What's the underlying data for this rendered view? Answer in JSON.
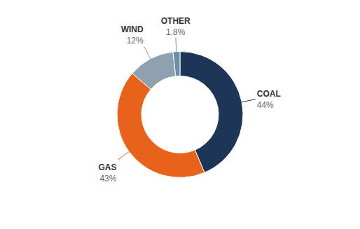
{
  "chart_data": {
    "type": "pie",
    "categories": [
      "COAL",
      "GAS",
      "WIND",
      "OTHER"
    ],
    "values": [
      44,
      43,
      12,
      1.8
    ],
    "value_labels": [
      "44%",
      "43%",
      "12%",
      "1.8%"
    ],
    "colors": [
      "#1d3557",
      "#e8621a",
      "#8fa0b0",
      "#6c8fa8"
    ],
    "data_labels": true
  }
}
